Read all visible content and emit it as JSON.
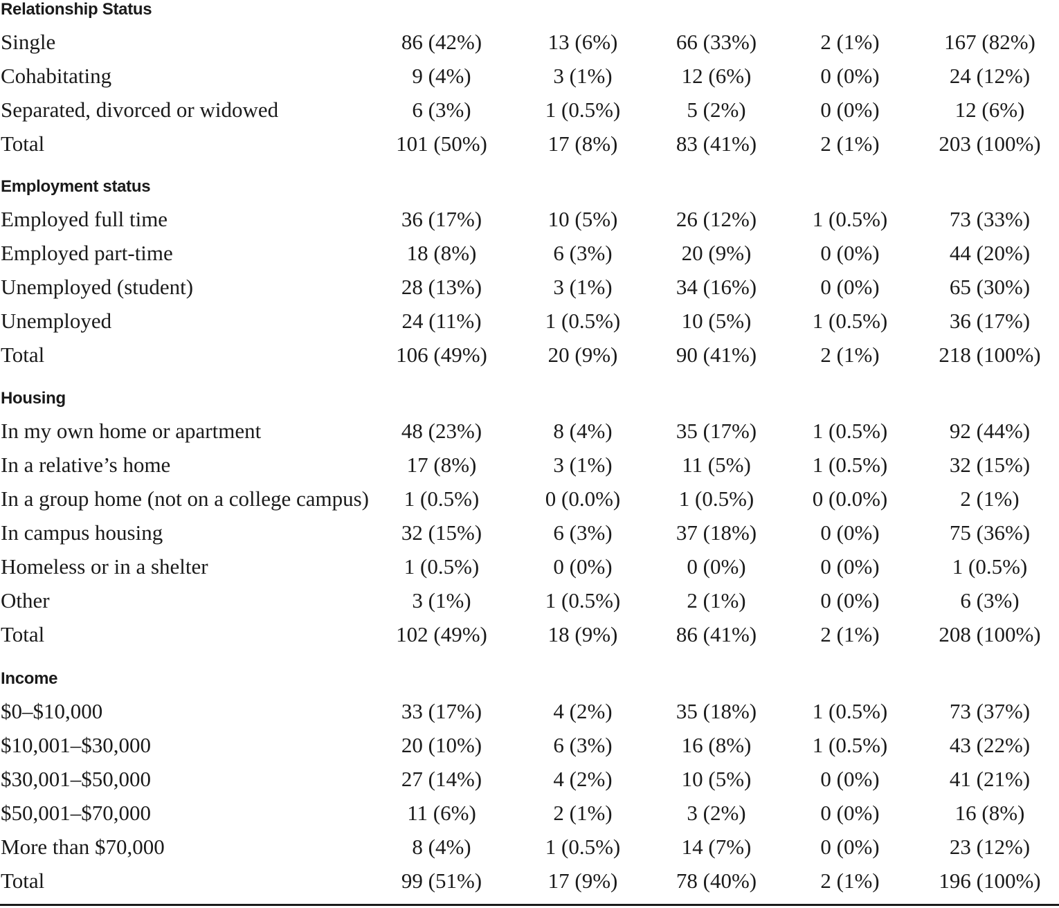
{
  "sections": [
    {
      "title": "Relationship Status",
      "rows": [
        {
          "label": "Single",
          "values": [
            "86 (42%)",
            "13 (6%)",
            "66 (33%)",
            "2 (1%)",
            "167 (82%)"
          ]
        },
        {
          "label": "Cohabitating",
          "values": [
            "9 (4%)",
            "3 (1%)",
            "12 (6%)",
            "0 (0%)",
            "24 (12%)"
          ]
        },
        {
          "label": "Separated, divorced or widowed",
          "values": [
            "6 (3%)",
            "1 (0.5%)",
            "5 (2%)",
            "0 (0%)",
            "12 (6%)"
          ]
        },
        {
          "label": "Total",
          "values": [
            "101 (50%)",
            "17 (8%)",
            "83 (41%)",
            "2 (1%)",
            "203 (100%)"
          ]
        }
      ]
    },
    {
      "title": "Employment status",
      "rows": [
        {
          "label": "Employed full time",
          "values": [
            "36 (17%)",
            "10 (5%)",
            "26 (12%)",
            "1 (0.5%)",
            "73 (33%)"
          ]
        },
        {
          "label": "Employed part-time",
          "values": [
            "18 (8%)",
            "6 (3%)",
            "20 (9%)",
            "0 (0%)",
            "44 (20%)"
          ]
        },
        {
          "label": "Unemployed (student)",
          "values": [
            "28 (13%)",
            "3 (1%)",
            "34 (16%)",
            "0 (0%)",
            "65 (30%)"
          ]
        },
        {
          "label": "Unemployed",
          "values": [
            "24 (11%)",
            "1 (0.5%)",
            "10 (5%)",
            "1 (0.5%)",
            "36 (17%)"
          ]
        },
        {
          "label": "Total",
          "values": [
            "106 (49%)",
            "20 (9%)",
            "90 (41%)",
            "2 (1%)",
            "218 (100%)"
          ]
        }
      ]
    },
    {
      "title": "Housing",
      "rows": [
        {
          "label": "In my own home or apartment",
          "values": [
            "48 (23%)",
            "8 (4%)",
            "35 (17%)",
            "1 (0.5%)",
            "92 (44%)"
          ]
        },
        {
          "label": "In a relative’s home",
          "values": [
            "17 (8%)",
            "3 (1%)",
            "11 (5%)",
            "1 (0.5%)",
            "32 (15%)"
          ]
        },
        {
          "label": "In a group home (not on a college campus)",
          "values": [
            "1 (0.5%)",
            "0 (0.0%)",
            "1 (0.5%)",
            "0 (0.0%)",
            "2 (1%)"
          ]
        },
        {
          "label": "In campus housing",
          "values": [
            "32 (15%)",
            "6 (3%)",
            "37 (18%)",
            "0 (0%)",
            "75 (36%)"
          ]
        },
        {
          "label": "Homeless or in a shelter",
          "values": [
            "1 (0.5%)",
            "0 (0%)",
            "0 (0%)",
            "0 (0%)",
            "1 (0.5%)"
          ]
        },
        {
          "label": "Other",
          "values": [
            "3 (1%)",
            "1 (0.5%)",
            "2 (1%)",
            "0 (0%)",
            "6 (3%)"
          ]
        },
        {
          "label": "Total",
          "values": [
            "102 (49%)",
            "18 (9%)",
            "86 (41%)",
            "2 (1%)",
            "208 (100%)"
          ]
        }
      ]
    },
    {
      "title": "Income",
      "rows": [
        {
          "label": "$0–$10,000",
          "values": [
            "33 (17%)",
            "4 (2%)",
            "35 (18%)",
            "1 (0.5%)",
            "73 (37%)"
          ]
        },
        {
          "label": "$10,001–$30,000",
          "values": [
            "20 (10%)",
            "6 (3%)",
            "16 (8%)",
            "1 (0.5%)",
            "43 (22%)"
          ]
        },
        {
          "label": "$30,001–$50,000",
          "values": [
            "27 (14%)",
            "4 (2%)",
            "10 (5%)",
            "0 (0%)",
            "41 (21%)"
          ]
        },
        {
          "label": "$50,001–$70,000",
          "values": [
            "11 (6%)",
            "2 (1%)",
            "3 (2%)",
            "0 (0%)",
            "16 (8%)"
          ]
        },
        {
          "label": "More than $70,000",
          "values": [
            "8 (4%)",
            "1 (0.5%)",
            "14 (7%)",
            "0 (0%)",
            "23 (12%)"
          ]
        },
        {
          "label": "Total",
          "values": [
            "99 (51%)",
            "17 (9%)",
            "78 (40%)",
            "2 (1%)",
            "196 (100%)"
          ]
        }
      ]
    }
  ]
}
